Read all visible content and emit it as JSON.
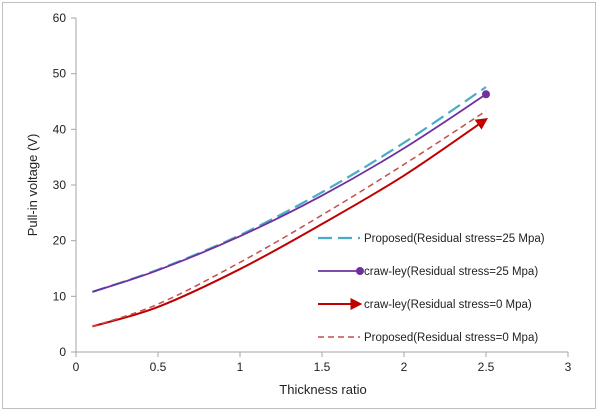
{
  "chart_data": {
    "type": "line",
    "title": "",
    "xlabel": "Thickness ratio",
    "ylabel": "Pull-in voltage (V)",
    "xlim": [
      0,
      3
    ],
    "ylim": [
      0,
      60
    ],
    "x_ticks": [
      "0",
      "0.5",
      "1",
      "1.5",
      "2",
      "2.5",
      "3"
    ],
    "y_ticks": [
      "0",
      "10",
      "20",
      "30",
      "40",
      "50",
      "60"
    ],
    "grid": false,
    "legend_position": "bottom-right",
    "series": [
      {
        "name": "Proposed(Residual stress=25 Mpa)",
        "color": "#4bacc6",
        "style": "long-dash",
        "x": [
          0.1,
          0.5,
          1.0,
          1.5,
          2.0,
          2.5
        ],
        "y": [
          10.8,
          14.8,
          21.0,
          28.7,
          37.6,
          47.6
        ]
      },
      {
        "name": "craw-ley(Residual stress=25 Mpa)",
        "color": "#7030a0",
        "style": "solid-dot-end",
        "x": [
          0.1,
          0.5,
          1.0,
          1.5,
          2.0,
          2.5
        ],
        "y": [
          10.8,
          14.7,
          20.8,
          28.1,
          36.6,
          46.3
        ]
      },
      {
        "name": "craw-ley(Residual stress=0 Mpa)",
        "color": "#c00000",
        "style": "solid-arrow-end",
        "x": [
          0.1,
          0.5,
          1.0,
          1.5,
          2.0,
          2.5
        ],
        "y": [
          4.6,
          8.1,
          14.9,
          23.0,
          31.7,
          41.8
        ]
      },
      {
        "name": "Proposed(Residual stress=0 Mpa)",
        "color": "#c0504d",
        "style": "short-dash",
        "x": [
          0.1,
          0.5,
          1.0,
          1.5,
          2.0,
          2.5
        ],
        "y": [
          4.6,
          8.6,
          16.1,
          24.6,
          33.7,
          43.3
        ]
      }
    ]
  }
}
